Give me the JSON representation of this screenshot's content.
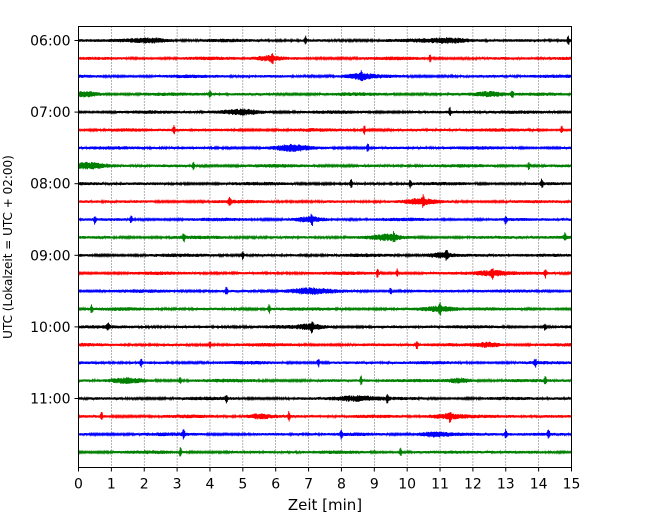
{
  "chart_data": {
    "type": "line",
    "title": "",
    "xlabel": "Zeit  [min]",
    "ylabel": "UTC (Lokalzeit = UTC + 02:00)",
    "xlim": [
      0,
      15
    ],
    "x_ticks": [
      0,
      1,
      2,
      3,
      4,
      5,
      6,
      7,
      8,
      9,
      10,
      11,
      12,
      13,
      14,
      15
    ],
    "y_tick_labels": [
      "06:00",
      "07:00",
      "08:00",
      "09:00",
      "10:00",
      "11:00"
    ],
    "grid": "vertical dotted",
    "color_cycle": [
      "#000000",
      "#ff0000",
      "#0000ff",
      "#008000"
    ],
    "traces": [
      {
        "start": "06:00",
        "color": "#000000",
        "spikes": [
          6.9,
          14.9
        ],
        "bursts": [
          [
            2.2,
            0.6
          ],
          [
            11.3,
            0.7
          ]
        ]
      },
      {
        "start": "06:15",
        "color": "#ff0000",
        "spikes": [
          5.9,
          10.7
        ],
        "bursts": [
          [
            5.8,
            0.4
          ]
        ]
      },
      {
        "start": "06:30",
        "color": "#0000ff",
        "spikes": [
          8.6
        ],
        "bursts": [
          [
            8.6,
            0.4
          ]
        ]
      },
      {
        "start": "06:45",
        "color": "#008000",
        "spikes": [
          4.0,
          13.2
        ],
        "bursts": [
          [
            0.2,
            0.5
          ],
          [
            12.5,
            0.4
          ]
        ]
      },
      {
        "start": "07:00",
        "color": "#000000",
        "spikes": [
          11.3
        ],
        "bursts": [
          [
            5.0,
            0.6
          ]
        ]
      },
      {
        "start": "07:15",
        "color": "#ff0000",
        "spikes": [
          2.9,
          8.7,
          14.7
        ],
        "bursts": []
      },
      {
        "start": "07:30",
        "color": "#0000ff",
        "spikes": [
          8.8
        ],
        "bursts": [
          [
            6.5,
            0.5
          ]
        ]
      },
      {
        "start": "07:45",
        "color": "#008000",
        "spikes": [
          3.5,
          13.7
        ],
        "bursts": [
          [
            0.3,
            0.5
          ]
        ]
      },
      {
        "start": "08:00",
        "color": "#000000",
        "spikes": [
          8.3,
          10.1,
          14.1
        ],
        "bursts": []
      },
      {
        "start": "08:15",
        "color": "#ff0000",
        "spikes": [
          4.6,
          10.5
        ],
        "bursts": [
          [
            10.4,
            0.4
          ]
        ]
      },
      {
        "start": "08:30",
        "color": "#0000ff",
        "spikes": [
          0.5,
          1.6,
          7.1,
          13.0
        ],
        "bursts": [
          [
            7.0,
            0.4
          ]
        ]
      },
      {
        "start": "08:45",
        "color": "#008000",
        "spikes": [
          3.2,
          9.6,
          14.8
        ],
        "bursts": [
          [
            9.4,
            0.4
          ]
        ]
      },
      {
        "start": "09:00",
        "color": "#000000",
        "spikes": [
          5.0,
          11.2
        ],
        "bursts": [
          [
            11.0,
            0.4
          ]
        ]
      },
      {
        "start": "09:15",
        "color": "#ff0000",
        "spikes": [
          9.1,
          9.7,
          12.6,
          14.2
        ],
        "bursts": [
          [
            12.6,
            0.5
          ]
        ]
      },
      {
        "start": "09:30",
        "color": "#0000ff",
        "spikes": [
          4.5,
          9.5
        ],
        "bursts": [
          [
            7.0,
            0.6
          ]
        ]
      },
      {
        "start": "09:45",
        "color": "#008000",
        "spikes": [
          0.4,
          5.8,
          11.0
        ],
        "bursts": [
          [
            11.0,
            0.5
          ]
        ]
      },
      {
        "start": "10:00",
        "color": "#000000",
        "spikes": [
          0.9,
          7.1,
          14.2
        ],
        "bursts": [
          [
            7.1,
            0.4
          ]
        ]
      },
      {
        "start": "10:15",
        "color": "#ff0000",
        "spikes": [
          4.0,
          10.3
        ],
        "bursts": [
          [
            12.5,
            0.4
          ]
        ]
      },
      {
        "start": "10:30",
        "color": "#0000ff",
        "spikes": [
          1.9,
          7.3,
          13.9
        ],
        "bursts": []
      },
      {
        "start": "10:45",
        "color": "#008000",
        "spikes": [
          3.1,
          8.6,
          14.2
        ],
        "bursts": [
          [
            1.5,
            0.5
          ],
          [
            11.6,
            0.4
          ]
        ]
      },
      {
        "start": "11:00",
        "color": "#000000",
        "spikes": [
          4.5,
          9.4
        ],
        "bursts": [
          [
            8.4,
            0.6
          ]
        ]
      },
      {
        "start": "11:15",
        "color": "#ff0000",
        "spikes": [
          0.7,
          6.4,
          11.3
        ],
        "bursts": [
          [
            11.2,
            0.6
          ],
          [
            5.5,
            0.4
          ]
        ]
      },
      {
        "start": "11:30",
        "color": "#0000ff",
        "spikes": [
          3.2,
          8.0,
          13.0,
          14.3
        ],
        "bursts": [
          [
            10.8,
            0.5
          ]
        ]
      },
      {
        "start": "11:45",
        "color": "#008000",
        "spikes": [
          3.1,
          9.8
        ],
        "bursts": []
      }
    ]
  }
}
